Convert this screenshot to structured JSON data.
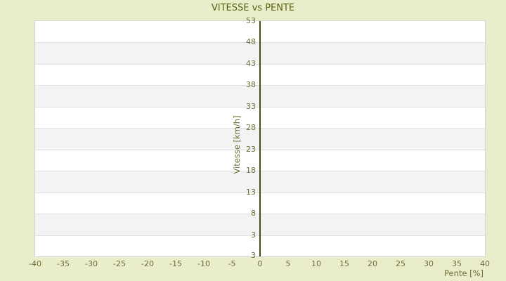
{
  "page": {
    "background_color": "#e9edca"
  },
  "chart_data": {
    "type": "scatter",
    "title": "VITESSE vs PENTE",
    "xlabel": "Pente [%]",
    "ylabel": "Vitesse [km/h]",
    "x_ticks": [
      -40,
      -35,
      -30,
      -25,
      -20,
      -15,
      -10,
      -5,
      0,
      5,
      10,
      15,
      20,
      25,
      30,
      35,
      40
    ],
    "y_ticks": [
      53,
      48,
      43,
      38,
      33,
      28,
      23,
      18,
      13,
      8,
      3
    ],
    "y_bottom_edge_label": "3",
    "xlim": [
      -40,
      40
    ],
    "ylim": [
      -2,
      53
    ],
    "series": [],
    "legend": "none",
    "grid": {
      "horizontal_gridlines": true,
      "vertical_gridlines": false,
      "alternating_row_bands": true,
      "y_axis_drawn_at_x": 0
    },
    "colors": {
      "background": "#e9edca",
      "plot_background": "#ffffff",
      "band": "#f3f3f4",
      "gridline": "#e0e0e3",
      "plot_border": "#d4d4d7",
      "axis_line": "#44500c",
      "title_text": "#57620d",
      "tick_text": "#6c7037"
    }
  }
}
